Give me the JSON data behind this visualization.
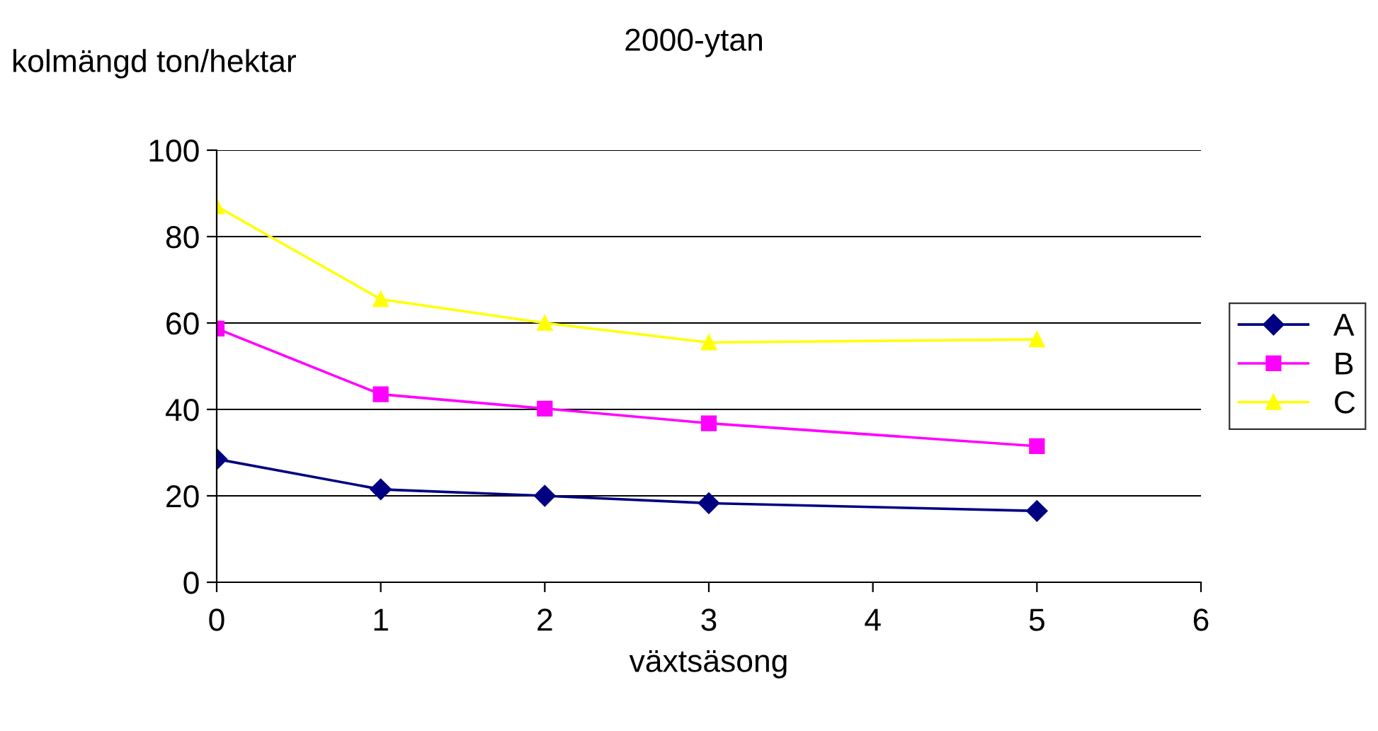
{
  "chart_data": {
    "type": "line",
    "title": "2000-ytan",
    "xlabel": "växtsäsong",
    "ylabel": "kolmängd ton/hektar",
    "x": [
      0,
      1,
      2,
      3,
      5
    ],
    "series": [
      {
        "name": "A",
        "color": "#000080",
        "values": [
          28.5,
          21.5,
          20,
          18.3,
          16.5
        ],
        "marker": "diamond"
      },
      {
        "name": "B",
        "color": "#ff00ff",
        "values": [
          58.7,
          43.5,
          40.2,
          36.8,
          31.5
        ],
        "marker": "square"
      },
      {
        "name": "C",
        "color": "#ffff00",
        "values": [
          87,
          65.5,
          60,
          55.5,
          56.2
        ],
        "marker": "triangle"
      }
    ],
    "xlim": [
      0,
      6
    ],
    "xticks": [
      0,
      1,
      2,
      3,
      4,
      5,
      6
    ],
    "ylim": [
      0,
      100
    ],
    "yticks": [
      0,
      20,
      40,
      60,
      80,
      100
    ],
    "grid": "y",
    "legend": "right",
    "line_style": "solid"
  }
}
